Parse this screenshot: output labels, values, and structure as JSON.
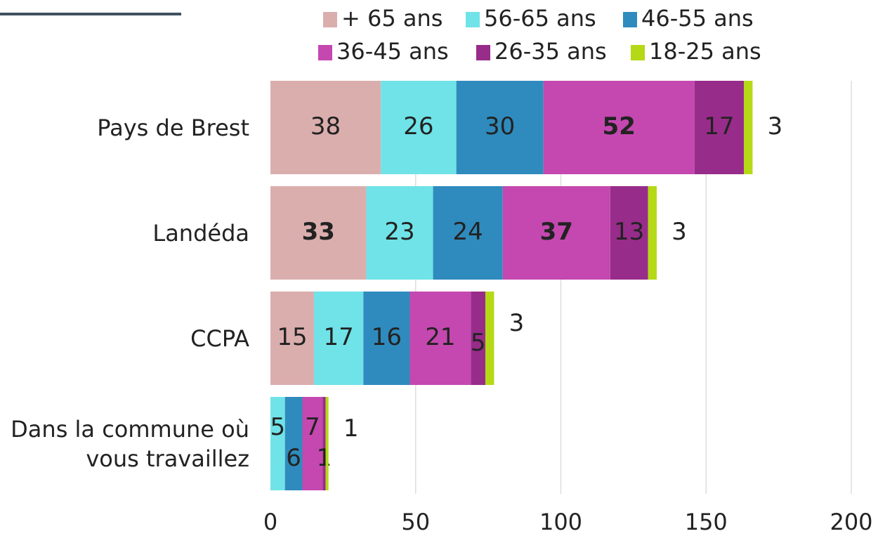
{
  "chart_data": {
    "type": "stacked_bar_horizontal",
    "categories": [
      "Pays de Brest",
      "Landéda",
      "CCPA",
      "Dans la commune où vous travaillez"
    ],
    "series": [
      {
        "name": "+ 65 ans",
        "color": "#dbaeae",
        "values": [
          38,
          33,
          15,
          null
        ],
        "label_color": "#222222",
        "label_bold": [
          false,
          true,
          false,
          false
        ]
      },
      {
        "name": "56-65 ans",
        "color": "#6fe3e8",
        "values": [
          26,
          23,
          17,
          5
        ],
        "label_color": "#222222",
        "label_bold": [
          false,
          false,
          false,
          false
        ]
      },
      {
        "name": "46-55 ans",
        "color": "#2f8bbd",
        "values": [
          30,
          24,
          16,
          6
        ],
        "label_color": "#222222",
        "label_bold": [
          false,
          false,
          false,
          false
        ]
      },
      {
        "name": "36-45 ans",
        "color": "#c448b0",
        "values": [
          52,
          37,
          21,
          7
        ],
        "label_color": "#222222",
        "label_bold": [
          true,
          true,
          false,
          false
        ]
      },
      {
        "name": "26-35 ans",
        "color": "#982c8a",
        "values": [
          17,
          13,
          5,
          1
        ],
        "label_color": "#ffffff",
        "label_bold": [
          false,
          false,
          false,
          false
        ]
      },
      {
        "name": "18-25 ans",
        "color": "#b5d916",
        "values": [
          3,
          3,
          3,
          1
        ],
        "label_color": "#222222",
        "label_bold": [
          false,
          false,
          false,
          false
        ]
      }
    ],
    "xlim": [
      0,
      200
    ],
    "xticks": [
      0,
      50,
      100,
      150,
      200
    ],
    "grid": true
  }
}
